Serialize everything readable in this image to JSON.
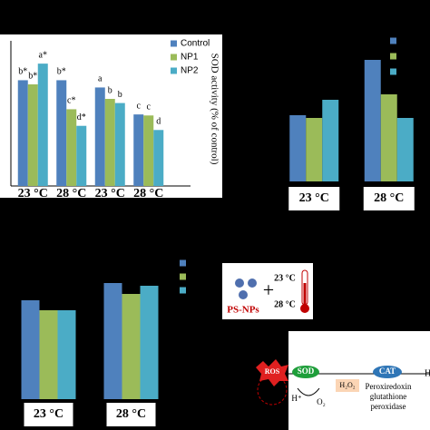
{
  "chart_data": [
    {
      "type": "bar",
      "y_label": "SOD activity (% of control)",
      "categories": [
        "23 °C",
        "28 °C",
        "23 °C",
        "28 °C"
      ],
      "ylim": [
        0,
        7
      ],
      "series": [
        {
          "name": "Control",
          "color": "#4f81bd",
          "values": [
            5.1,
            5.1,
            4.75,
            3.45
          ],
          "value_labels": [
            "b*",
            "b*",
            "a",
            "c"
          ]
        },
        {
          "name": "NP1",
          "color": "#9bbb59",
          "values": [
            4.9,
            3.7,
            4.2,
            3.4
          ],
          "value_labels": [
            "b*",
            "c*",
            "b",
            "c"
          ]
        },
        {
          "name": "NP2",
          "color": "#4bacc6",
          "values": [
            5.9,
            2.9,
            4.0,
            2.7
          ],
          "value_labels": [
            "a*",
            "d*",
            "b",
            "d"
          ]
        }
      ]
    },
    {
      "type": "bar",
      "categories": [
        "23 °C",
        "28 °C"
      ],
      "ylim": [
        0,
        140
      ],
      "series": [
        {
          "color": "#4f81bd",
          "values": [
            73,
            134
          ]
        },
        {
          "color": "#9bbb59",
          "values": [
            70,
            96
          ]
        },
        {
          "color": "#4bacc6",
          "values": [
            90,
            70
          ]
        }
      ]
    },
    {
      "type": "bar",
      "categories": [
        "23 °C",
        "28 °C"
      ],
      "ylim": [
        0,
        140
      ],
      "series": [
        {
          "color": "#4f81bd",
          "values": [
            109,
            128
          ]
        },
        {
          "color": "#9bbb59",
          "values": [
            98,
            116
          ]
        },
        {
          "color": "#4bacc6",
          "values": [
            98,
            125
          ]
        }
      ]
    }
  ],
  "diagram": {
    "particles": "PS-NPs",
    "temp_low": "23 °C",
    "temp_high": "28 °C",
    "ros": "ROS",
    "sod": "SOD",
    "h_plus": "H⁺",
    "o2": "O₂",
    "h2o2": "H₂O₂",
    "cat": "CAT",
    "enzymes": [
      "Peroxiredoxin",
      "glutathione",
      "peroxidase"
    ],
    "product": "H"
  }
}
